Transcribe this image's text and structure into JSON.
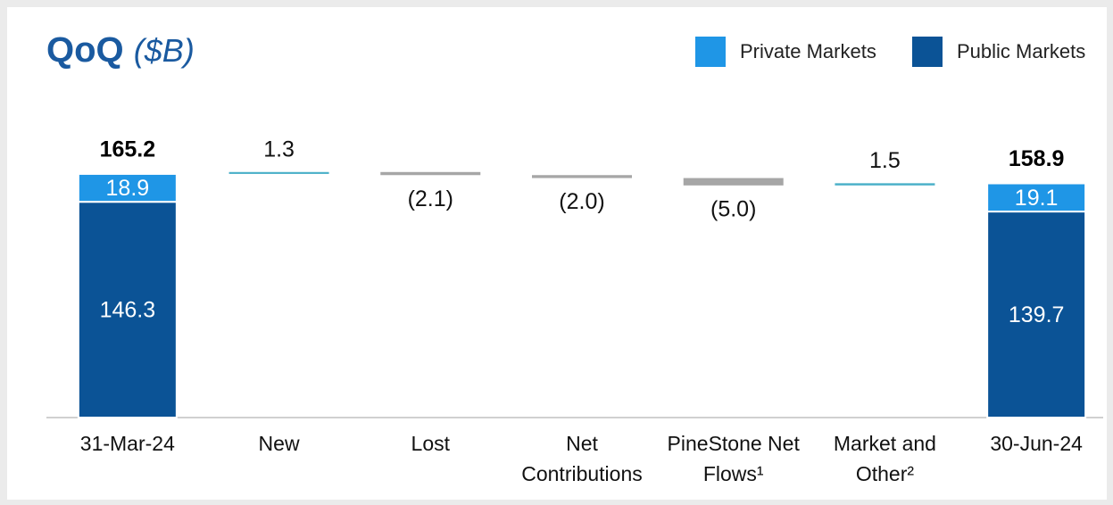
{
  "chart_data": {
    "type": "waterfall",
    "title": "QoQ",
    "subtitle": "($B)",
    "categories": [
      "31-Mar-24",
      "New",
      "Lost",
      "Net Contributions",
      "PineStone Net Flows¹",
      "Market and Other²",
      "30-Jun-24"
    ],
    "series": [
      {
        "name": "Private Markets",
        "color": "#1f96e6",
        "values": [
          18.9,
          null,
          null,
          null,
          null,
          null,
          19.1
        ]
      },
      {
        "name": "Public Markets",
        "color": "#0b5396",
        "values": [
          146.3,
          null,
          null,
          null,
          null,
          null,
          139.7
        ]
      }
    ],
    "totals": [
      165.2,
      null,
      null,
      null,
      null,
      null,
      158.9
    ],
    "changes": [
      null,
      1.3,
      -2.1,
      -2.0,
      -5.0,
      1.5,
      null
    ],
    "value_labels": [
      null,
      "1.3",
      "(2.1)",
      "(2.0)",
      "(5.0)",
      "1.5",
      null
    ],
    "increase_color": "#4bb0c8",
    "decrease_color": "#a6a6a6",
    "ylim": [
      0,
      170
    ],
    "legend": "top-right"
  }
}
